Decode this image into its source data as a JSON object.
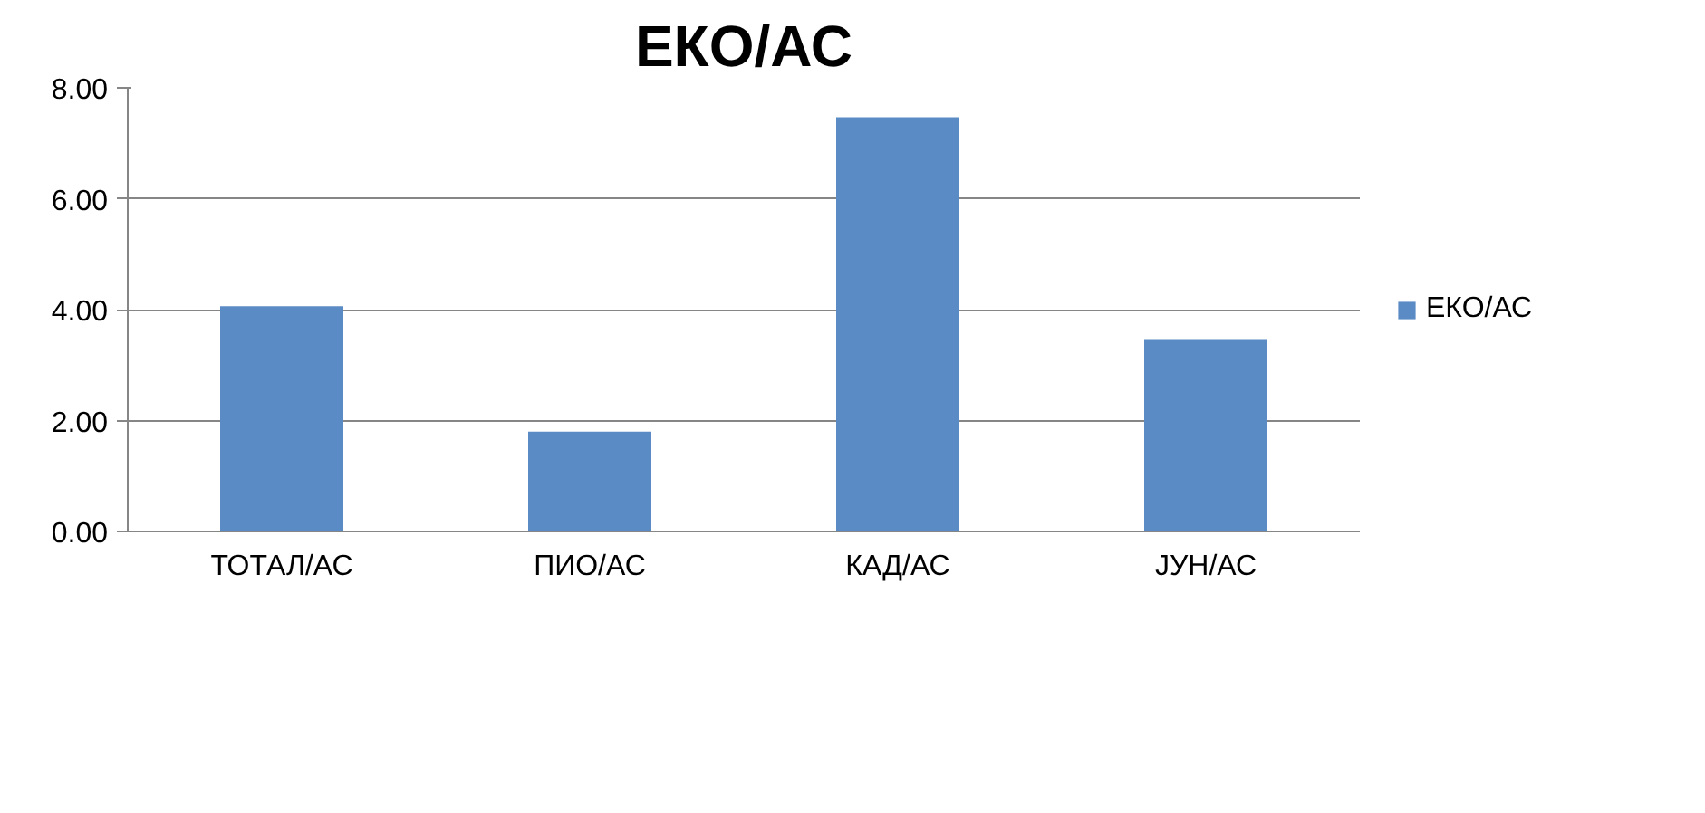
{
  "chart_data": {
    "type": "bar",
    "title": "ЕКО/АС",
    "categories": [
      "ТОТАЛ/АС",
      "ПИО/АС",
      "КАД/АС",
      "ЈУН/АС"
    ],
    "series": [
      {
        "name": "ЕКО/АС",
        "color": "#5b8bc4",
        "values": [
          4.06,
          1.8,
          7.47,
          3.47
        ]
      }
    ],
    "ylim": [
      0,
      8
    ],
    "yticks": [
      {
        "value": 0,
        "label": "0.00"
      },
      {
        "value": 2,
        "label": "2.00"
      },
      {
        "value": 4,
        "label": "4.00"
      },
      {
        "value": 6,
        "label": "6.00"
      },
      {
        "value": 8,
        "label": "8.00"
      }
    ],
    "grid": "y",
    "legend": "right"
  }
}
